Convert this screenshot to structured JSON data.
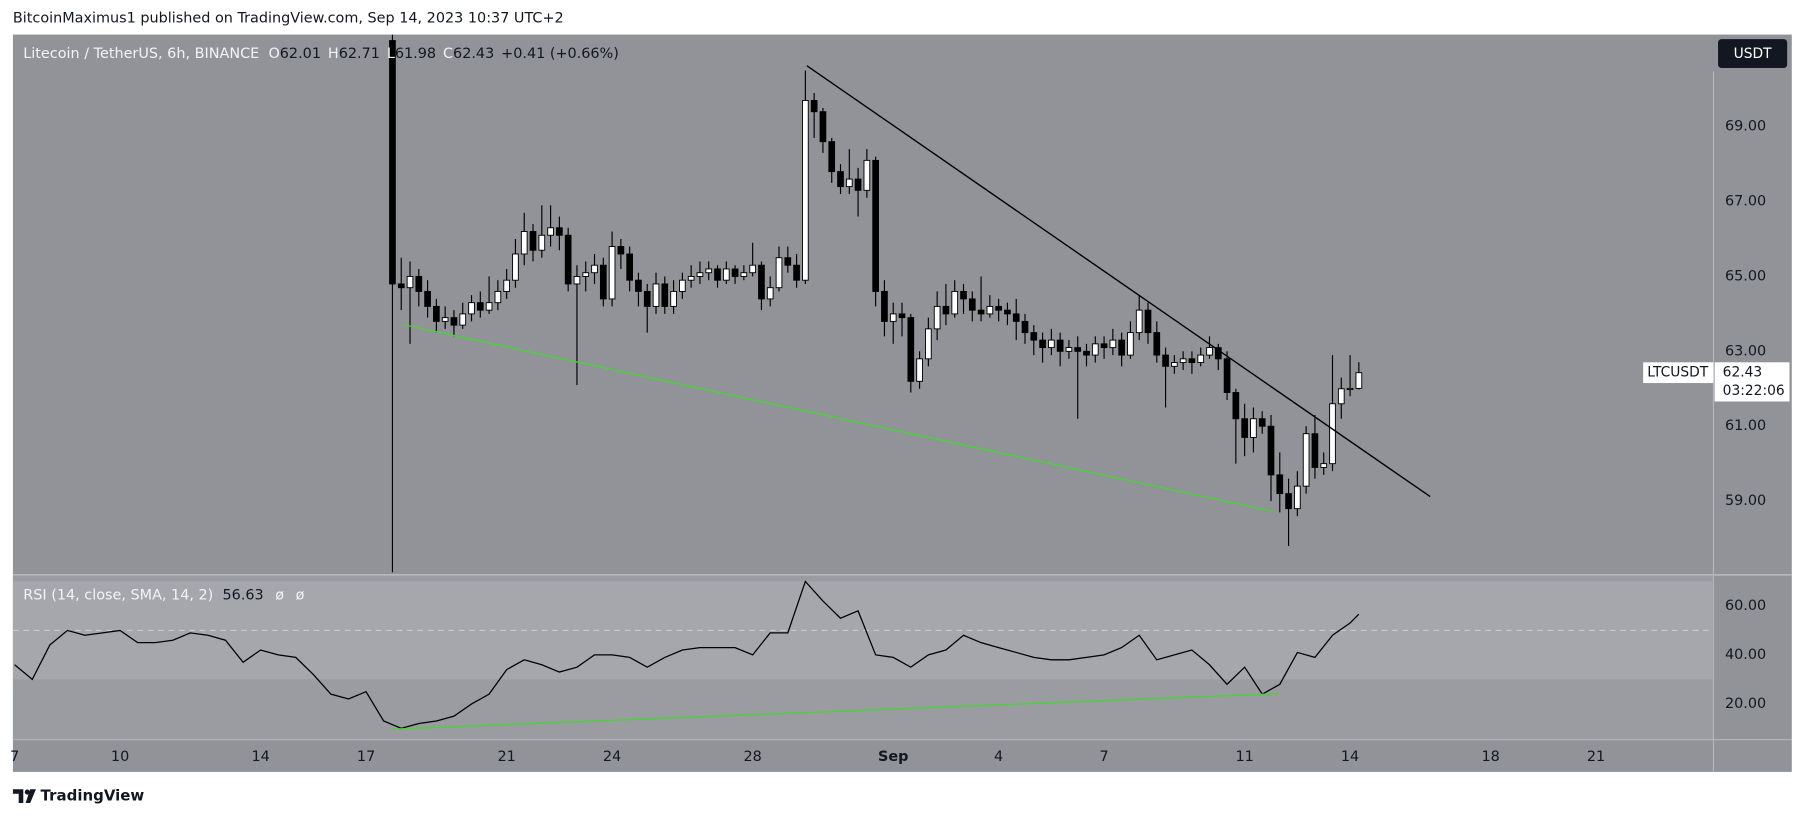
{
  "header": {
    "byline": "BitcoinMaximus1 published on TradingView.com, Sep 14, 2023 10:37 UTC+2"
  },
  "footer": "TradingView",
  "chart_data": [
    {
      "type": "candlestick",
      "symbol": "Litecoin / TetherUS, 6h, BINANCE",
      "ohlc_labels": [
        "O",
        "H",
        "L",
        "C"
      ],
      "change": "+0.41 (+0.66%)",
      "currency": "USDT",
      "ticker": "LTCUSDT",
      "countdown": "03:22:06",
      "up_color": "#ffffff",
      "down_color": "#000000",
      "wick_color": "#000000",
      "xlim": [
        6.95,
        55.34
      ],
      "ylim": [
        57.06,
        71.46
      ],
      "xticks": [
        7,
        10,
        14,
        17,
        21,
        24,
        28,
        {
          "value": 32,
          "label": "Sep"
        },
        {
          "value": 35,
          "label": "4"
        },
        {
          "value": 38,
          "label": "7"
        },
        {
          "value": 42,
          "label": "11"
        },
        {
          "value": 45,
          "label": "14"
        },
        {
          "value": 49,
          "label": "18"
        },
        {
          "value": 52,
          "label": "21"
        }
      ],
      "yticks": [
        {
          "value": 59,
          "label": "59.00"
        },
        {
          "value": 61,
          "label": "61.00"
        },
        {
          "value": 63,
          "label": "63.00"
        },
        {
          "value": 65,
          "label": "65.00"
        },
        {
          "value": 67,
          "label": "67.00"
        },
        {
          "value": 69,
          "label": "69.00"
        }
      ],
      "grid": false,
      "x": [
        17.75,
        18,
        18.25,
        18.5,
        18.75,
        19,
        19.25,
        19.5,
        19.75,
        20,
        20.25,
        20.5,
        20.75,
        21,
        21.25,
        21.5,
        21.75,
        22,
        22.25,
        22.5,
        22.75,
        23,
        23.25,
        23.5,
        23.75,
        24,
        24.25,
        24.5,
        24.75,
        25,
        25.25,
        25.5,
        25.75,
        26,
        26.25,
        26.5,
        26.75,
        27,
        27.25,
        27.5,
        27.75,
        28,
        28.25,
        28.5,
        28.75,
        29,
        29.25,
        29.5,
        29.75,
        30,
        30.25,
        30.5,
        30.75,
        31,
        31.25,
        31.5,
        31.75,
        32,
        32.25,
        32.5,
        32.75,
        33,
        33.25,
        33.5,
        33.75,
        34,
        34.25,
        34.5,
        34.75,
        35,
        35.25,
        35.5,
        35.75,
        36,
        36.25,
        36.5,
        36.75,
        37,
        37.25,
        37.5,
        37.75,
        38,
        38.25,
        38.5,
        38.75,
        39,
        39.25,
        39.5,
        39.75,
        40,
        40.25,
        40.5,
        40.75,
        41,
        41.25,
        41.5,
        41.75,
        42,
        42.25,
        42.5,
        42.75,
        43,
        43.25,
        43.5,
        43.75,
        44,
        44.25,
        44.5,
        44.75,
        45,
        45.25
      ],
      "ohlc": [
        [
          71.3,
          71.5,
          57.1,
          64.8
        ],
        [
          64.8,
          65.5,
          64.1,
          64.7
        ],
        [
          64.7,
          65.4,
          63.2,
          65.0
        ],
        [
          65.0,
          65.2,
          64.2,
          64.6
        ],
        [
          64.6,
          64.9,
          63.9,
          64.2
        ],
        [
          64.2,
          64.4,
          63.5,
          63.8
        ],
        [
          63.8,
          64.2,
          63.6,
          63.9
        ],
        [
          63.9,
          64.1,
          63.4,
          63.7
        ],
        [
          63.7,
          64.3,
          63.6,
          64.0
        ],
        [
          64.0,
          64.5,
          63.8,
          64.3
        ],
        [
          64.3,
          64.6,
          63.9,
          64.1
        ],
        [
          64.1,
          65.0,
          64.0,
          64.3
        ],
        [
          64.3,
          64.9,
          64.1,
          64.6
        ],
        [
          64.6,
          65.2,
          64.4,
          64.9
        ],
        [
          64.9,
          66.0,
          64.7,
          65.6
        ],
        [
          65.6,
          66.7,
          65.3,
          66.2
        ],
        [
          66.2,
          66.4,
          65.4,
          65.7
        ],
        [
          65.7,
          66.9,
          65.5,
          66.1
        ],
        [
          66.1,
          66.9,
          65.8,
          66.3
        ],
        [
          66.3,
          66.6,
          65.7,
          66.1
        ],
        [
          66.1,
          66.3,
          64.6,
          64.8
        ],
        [
          64.8,
          65.3,
          62.1,
          65.0
        ],
        [
          65.0,
          65.4,
          64.6,
          65.1
        ],
        [
          65.1,
          65.6,
          64.8,
          65.3
        ],
        [
          65.3,
          65.5,
          64.2,
          64.4
        ],
        [
          64.4,
          66.2,
          64.2,
          65.8
        ],
        [
          65.8,
          66.0,
          65.2,
          65.6
        ],
        [
          65.6,
          65.8,
          64.6,
          64.9
        ],
        [
          64.9,
          65.1,
          64.2,
          64.6
        ],
        [
          64.6,
          64.8,
          63.5,
          64.2
        ],
        [
          64.2,
          65.1,
          64.0,
          64.8
        ],
        [
          64.8,
          65.0,
          64.0,
          64.2
        ],
        [
          64.2,
          64.9,
          64.0,
          64.6
        ],
        [
          64.6,
          65.1,
          64.4,
          64.9
        ],
        [
          64.9,
          65.3,
          64.7,
          65.0
        ],
        [
          65.0,
          65.4,
          64.8,
          65.1
        ],
        [
          65.1,
          65.4,
          64.9,
          65.2
        ],
        [
          65.2,
          65.3,
          64.7,
          64.9
        ],
        [
          64.9,
          65.4,
          64.8,
          65.2
        ],
        [
          65.2,
          65.3,
          64.8,
          65.0
        ],
        [
          65.0,
          65.3,
          64.9,
          65.1
        ],
        [
          65.1,
          65.9,
          65.0,
          65.3
        ],
        [
          65.3,
          65.4,
          64.1,
          64.4
        ],
        [
          64.4,
          65.0,
          64.2,
          64.7
        ],
        [
          64.7,
          65.8,
          64.6,
          65.5
        ],
        [
          65.5,
          65.8,
          65.1,
          65.3
        ],
        [
          65.3,
          65.6,
          64.7,
          64.9
        ],
        [
          64.9,
          70.5,
          64.8,
          69.7
        ],
        [
          69.7,
          69.9,
          68.7,
          69.4
        ],
        [
          69.4,
          69.5,
          68.3,
          68.6
        ],
        [
          68.6,
          68.7,
          67.5,
          67.8
        ],
        [
          67.8,
          68.0,
          67.2,
          67.4
        ],
        [
          67.4,
          68.4,
          67.2,
          67.6
        ],
        [
          67.6,
          67.9,
          66.6,
          67.3
        ],
        [
          67.3,
          68.4,
          67.1,
          68.1
        ],
        [
          68.1,
          68.2,
          64.2,
          64.6
        ],
        [
          64.6,
          64.9,
          63.4,
          63.8
        ],
        [
          63.8,
          64.3,
          63.2,
          64.0
        ],
        [
          64.0,
          64.3,
          63.4,
          63.9
        ],
        [
          63.9,
          64.0,
          61.9,
          62.2
        ],
        [
          62.2,
          63.0,
          62.0,
          62.8
        ],
        [
          62.8,
          63.9,
          62.6,
          63.6
        ],
        [
          63.6,
          64.6,
          63.3,
          64.2
        ],
        [
          64.2,
          64.8,
          63.7,
          64.0
        ],
        [
          64.0,
          64.9,
          63.9,
          64.6
        ],
        [
          64.6,
          64.8,
          64.0,
          64.4
        ],
        [
          64.4,
          64.6,
          63.8,
          64.1
        ],
        [
          64.1,
          65.0,
          63.8,
          64.0
        ],
        [
          64.0,
          64.5,
          63.9,
          64.2
        ],
        [
          64.2,
          64.4,
          63.8,
          64.1
        ],
        [
          64.1,
          64.3,
          63.7,
          64.0
        ],
        [
          64.0,
          64.4,
          63.3,
          63.8
        ],
        [
          63.8,
          64.0,
          63.2,
          63.5
        ],
        [
          63.5,
          63.7,
          62.9,
          63.3
        ],
        [
          63.3,
          63.5,
          62.7,
          63.1
        ],
        [
          63.1,
          63.6,
          62.9,
          63.3
        ],
        [
          63.3,
          63.5,
          62.6,
          63.0
        ],
        [
          63.0,
          63.3,
          62.8,
          63.1
        ],
        [
          63.1,
          63.4,
          61.2,
          63.0
        ],
        [
          63.0,
          63.2,
          62.6,
          62.9
        ],
        [
          62.9,
          63.4,
          62.7,
          63.2
        ],
        [
          63.2,
          63.4,
          62.8,
          63.1
        ],
        [
          63.1,
          63.6,
          62.9,
          63.3
        ],
        [
          63.3,
          63.5,
          62.6,
          62.9
        ],
        [
          62.9,
          63.8,
          62.8,
          63.5
        ],
        [
          63.5,
          64.5,
          63.3,
          64.1
        ],
        [
          64.1,
          64.3,
          63.2,
          63.5
        ],
        [
          63.5,
          63.8,
          62.7,
          62.9
        ],
        [
          62.9,
          63.1,
          61.5,
          62.6
        ],
        [
          62.6,
          62.9,
          62.4,
          62.7
        ],
        [
          62.7,
          63.0,
          62.5,
          62.8
        ],
        [
          62.8,
          63.0,
          62.4,
          62.7
        ],
        [
          62.7,
          63.1,
          62.6,
          62.9
        ],
        [
          62.9,
          63.4,
          62.8,
          63.1
        ],
        [
          63.1,
          63.2,
          62.5,
          62.8
        ],
        [
          62.8,
          63.0,
          61.7,
          61.9
        ],
        [
          61.9,
          62.0,
          60.0,
          61.2
        ],
        [
          61.2,
          61.6,
          60.2,
          60.7
        ],
        [
          60.7,
          61.5,
          60.3,
          61.2
        ],
        [
          61.2,
          61.4,
          60.8,
          61.0
        ],
        [
          61.0,
          61.3,
          59.0,
          59.7
        ],
        [
          59.7,
          60.3,
          58.7,
          59.2
        ],
        [
          59.2,
          59.6,
          57.8,
          58.8
        ],
        [
          58.8,
          59.8,
          58.6,
          59.4
        ],
        [
          59.4,
          61.0,
          59.2,
          60.8
        ],
        [
          60.8,
          61.3,
          59.6,
          59.9
        ],
        [
          59.9,
          60.3,
          59.7,
          60.0
        ],
        [
          60.0,
          62.9,
          59.8,
          61.6
        ],
        [
          61.6,
          62.3,
          61.2,
          62.0
        ],
        [
          62.0,
          62.9,
          61.8,
          62.01
        ],
        [
          62.01,
          62.71,
          61.98,
          62.43
        ]
      ],
      "trendlines": [
        {
          "color": "#000000",
          "x": [
            29.54,
            47.28
          ],
          "y": [
            70.63,
            59.12
          ]
        },
        {
          "color": "#4cd137",
          "x": [
            18.07,
            42.82
          ],
          "y": [
            63.71,
            58.72
          ]
        }
      ]
    },
    {
      "type": "line",
      "title": "RSI (14, close, SMA, 14, 2)",
      "markers": [
        "ø",
        "ø"
      ],
      "color": "#000000",
      "ylim": [
        5.4,
        72.2
      ],
      "yticks": [
        {
          "value": 20,
          "label": "20.00"
        },
        {
          "value": 40,
          "label": "40.00"
        },
        {
          "value": 60,
          "label": "60.00"
        }
      ],
      "band": [
        30,
        70
      ],
      "midline": 50,
      "x": [
        7,
        7.5,
        8,
        8.5,
        9,
        9.5,
        10,
        10.5,
        11,
        11.5,
        12,
        12.5,
        13,
        13.5,
        14,
        14.5,
        15,
        15.5,
        16,
        16.5,
        17,
        17.5,
        18,
        18.5,
        19,
        19.5,
        20,
        20.5,
        21,
        21.5,
        22,
        22.5,
        23,
        23.5,
        24,
        24.5,
        25,
        25.5,
        26,
        26.5,
        27,
        27.5,
        28,
        28.5,
        29,
        29.5,
        30,
        30.5,
        31,
        31.5,
        32,
        32.5,
        33,
        33.5,
        34,
        34.5,
        35,
        35.5,
        36,
        36.5,
        37,
        37.5,
        38,
        38.5,
        39,
        39.5,
        40,
        40.5,
        41,
        41.5,
        42,
        42.5,
        43,
        43.5,
        44,
        44.5,
        45,
        45.25
      ],
      "values": [
        36,
        30,
        44,
        50,
        48,
        49,
        50,
        45,
        45,
        46,
        49,
        48,
        46,
        37,
        42,
        40,
        39,
        32,
        24,
        22,
        25,
        13,
        10,
        12,
        13,
        15,
        20,
        24,
        34,
        38,
        36,
        33,
        35,
        40,
        40,
        39,
        35,
        39,
        42,
        43,
        43,
        43,
        40,
        49,
        49,
        70,
        62,
        55,
        58,
        40,
        39,
        35,
        40,
        42,
        48,
        45,
        43,
        41,
        39,
        38,
        38,
        39,
        40,
        43,
        48,
        38,
        40,
        42,
        36,
        28,
        35,
        24,
        28,
        41,
        39,
        48,
        53,
        56.63
      ],
      "trendlines": [
        {
          "color": "#4cd137",
          "x": [
            17.74,
            42.98
          ],
          "y": [
            9.65,
            24.2
          ]
        }
      ]
    }
  ]
}
